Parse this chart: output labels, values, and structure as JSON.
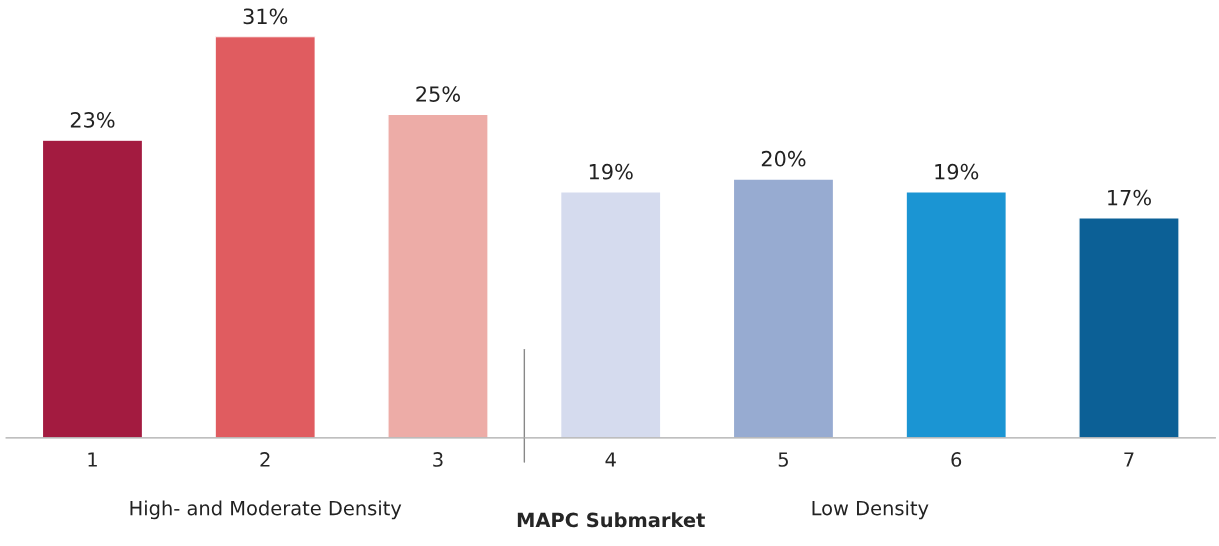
{
  "chart_data": {
    "type": "bar",
    "xlabel": "MAPC Submarket",
    "categories": [
      "1",
      "2",
      "3",
      "4",
      "5",
      "6",
      "7"
    ],
    "values": [
      23,
      31,
      25,
      19,
      20,
      19,
      17
    ],
    "value_labels": [
      "23%",
      "31%",
      "25%",
      "19%",
      "20%",
      "19%",
      "17%"
    ],
    "colors": [
      "#a31b40",
      "#e05c60",
      "#edaca7",
      "#d5dbee",
      "#97abd1",
      "#1b95d3",
      "#0c6096"
    ],
    "annotations": [
      "High- and Moderate Density",
      "Low Density"
    ],
    "grid": false,
    "legend": false
  }
}
